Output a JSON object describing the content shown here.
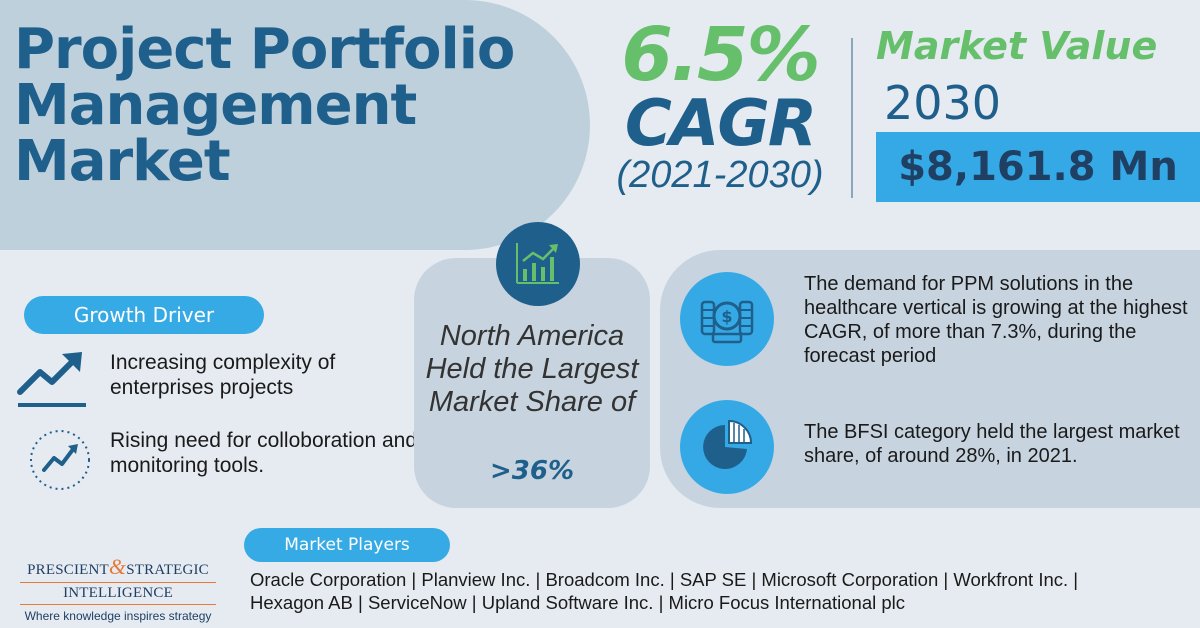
{
  "title": {
    "line1": "Project Portfolio",
    "line2": "Management",
    "line3": "Market"
  },
  "cagr": {
    "value": "6.5%",
    "label": "CAGR",
    "period": "(2021-2030)"
  },
  "market_value": {
    "label": "Market Value",
    "year": "2030",
    "amount": "$8,161.8 Mn"
  },
  "growth_driver": {
    "heading": "Growth Driver",
    "items": [
      {
        "text": "Increasing complexity of enterprises projects",
        "icon": "trend-up-arrow-icon"
      },
      {
        "text": "Rising need for colloboration and  monitoring tools.",
        "icon": "growth-circle-icon"
      }
    ]
  },
  "regional": {
    "text": "North America Held the Largest Market Share of",
    "value": ">36%",
    "icon": "bar-chart-trend-icon"
  },
  "insights": [
    {
      "text": "The demand for PPM solutions in the healthcare vertical is growing at the highest CAGR, of more than 7.3%, during the forecast period",
      "icon": "coins-dollar-icon"
    },
    {
      "text": "The BFSI category held the largest market share, of around 28%, in 2021.",
      "icon": "pie-chart-icon"
    }
  ],
  "players": {
    "heading": "Market Players",
    "line1": "Oracle Corporation | Planview Inc. | Broadcom Inc. | SAP SE | Microsoft Corporation | Workfront Inc. |",
    "line2": "Hexagon AB | ServiceNow | Upland Software Inc. | Micro Focus International plc"
  },
  "logo": {
    "name_left": "PRESCIENT",
    "amp": "&",
    "name_right": "STRATEGIC",
    "name_bottom": "INTELLIGENCE",
    "tagline": "Where knowledge inspires strategy"
  },
  "colors": {
    "primary": "#1f5f8b",
    "green": "#66bf6b",
    "accent": "#35a9e6",
    "background": "#e6ebf1",
    "panel": "#c7d4df",
    "logo_orange": "#e57a3b"
  }
}
